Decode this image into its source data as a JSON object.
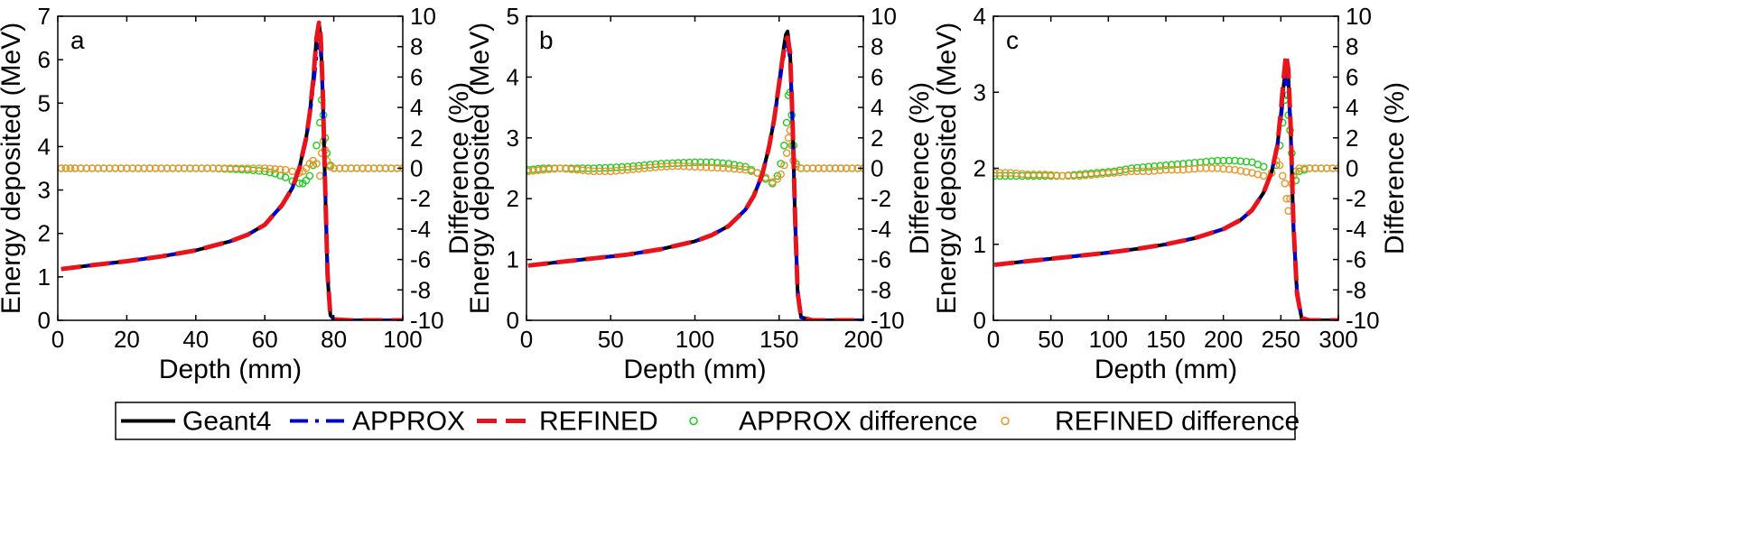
{
  "chart_data": [
    {
      "type": "line",
      "panel_label": "a",
      "xlabel": "Depth (mm)",
      "ylabel": "Energy deposited (MeV)",
      "y2label": "Difference (%)",
      "xlim": [
        0,
        100
      ],
      "ylim": [
        0,
        7
      ],
      "y2lim": [
        -10,
        10
      ],
      "xticks": [
        "0",
        "20",
        "40",
        "60",
        "80",
        "100"
      ],
      "yticks": [
        "0",
        "1",
        "2",
        "3",
        "4",
        "5",
        "6",
        "7"
      ],
      "y2ticks": [
        "-10",
        "-8",
        "-6",
        "-4",
        "-2",
        "0",
        "2",
        "4",
        "6",
        "8",
        "10"
      ],
      "series": [
        {
          "name": "Geant4",
          "color": "#000000",
          "style": "solid",
          "x": [
            1,
            10,
            20,
            30,
            40,
            50,
            55,
            60,
            65,
            68,
            70,
            72,
            73,
            74,
            75,
            75.7,
            76.2,
            76.8,
            77.5,
            78.2,
            79,
            80,
            85,
            100
          ],
          "y": [
            1.18,
            1.27,
            1.36,
            1.47,
            1.61,
            1.82,
            1.97,
            2.2,
            2.65,
            3.05,
            3.5,
            4.2,
            4.75,
            5.5,
            6.5,
            6.85,
            6.5,
            5.2,
            3.0,
            1.0,
            0.12,
            0.02,
            0.0,
            0.0
          ]
        },
        {
          "name": "APPROX",
          "color": "#0000cc",
          "style": "dashdot",
          "x": [
            1,
            10,
            20,
            30,
            40,
            50,
            55,
            60,
            65,
            68,
            70,
            72,
            73,
            74,
            75,
            75.7,
            76.2,
            76.8,
            77.5,
            78.2,
            79,
            80,
            85,
            100
          ],
          "y": [
            1.18,
            1.27,
            1.36,
            1.47,
            1.61,
            1.82,
            1.97,
            2.2,
            2.65,
            3.05,
            3.48,
            4.15,
            4.7,
            5.35,
            6.1,
            6.35,
            6.2,
            5.2,
            3.1,
            1.1,
            0.15,
            0.02,
            0.0,
            0.0
          ]
        },
        {
          "name": "REFINED",
          "color": "#e8141c",
          "style": "dashed",
          "x": [
            1,
            10,
            20,
            30,
            40,
            50,
            55,
            60,
            65,
            68,
            70,
            72,
            73,
            74,
            75,
            75.7,
            76.2,
            76.8,
            77.5,
            78.2,
            79,
            80,
            85,
            100
          ],
          "y": [
            1.18,
            1.27,
            1.36,
            1.47,
            1.61,
            1.82,
            1.97,
            2.2,
            2.65,
            3.05,
            3.5,
            4.2,
            4.75,
            5.5,
            6.5,
            6.85,
            6.55,
            5.3,
            3.05,
            1.05,
            0.12,
            0.02,
            0.0,
            0.0
          ]
        },
        {
          "name": "APPROX difference",
          "color": "#22cc22",
          "style": "marker",
          "axis": "y2",
          "x": [
            1,
            5,
            10,
            15,
            20,
            25,
            30,
            35,
            40,
            45,
            50,
            55,
            60,
            63,
            66,
            68,
            70,
            71,
            72,
            73,
            74,
            75,
            76,
            76.5,
            77,
            77.5,
            78,
            79,
            80,
            85,
            90,
            95,
            100
          ],
          "y": [
            0,
            0,
            0,
            0,
            0,
            0,
            0,
            0,
            0,
            0,
            -0.05,
            -0.1,
            -0.2,
            -0.35,
            -0.6,
            -0.85,
            -1.0,
            -1.0,
            -0.8,
            -0.5,
            0.2,
            1.5,
            3.0,
            4.5,
            3.5,
            2.0,
            1.0,
            0.2,
            0,
            0,
            0,
            0,
            0
          ]
        },
        {
          "name": "REFINED difference",
          "color": "#e8962a",
          "style": "marker",
          "axis": "y2",
          "x": [
            1,
            5,
            10,
            15,
            20,
            25,
            30,
            35,
            40,
            45,
            50,
            55,
            60,
            63,
            66,
            68,
            70,
            71,
            72,
            73,
            74,
            75,
            76,
            76.5,
            77,
            77.5,
            78,
            79,
            80,
            85,
            90,
            95,
            100
          ],
          "y": [
            0,
            0,
            0,
            0,
            0,
            0,
            0,
            0,
            0,
            0,
            0,
            0,
            0,
            -0.05,
            -0.1,
            -0.2,
            -0.3,
            -0.2,
            0,
            0.3,
            0.5,
            0.3,
            -0.5,
            1.0,
            1.8,
            1.2,
            0.5,
            0.1,
            0,
            0,
            0,
            0,
            0
          ]
        }
      ]
    },
    {
      "type": "line",
      "panel_label": "b",
      "xlabel": "Depth (mm)",
      "ylabel": "Energy deposited (MeV)",
      "y2label": "Difference (%)",
      "xlim": [
        0,
        200
      ],
      "ylim": [
        0,
        5
      ],
      "y2lim": [
        -10,
        10
      ],
      "xticks": [
        "0",
        "50",
        "100",
        "150",
        "200"
      ],
      "yticks": [
        "0",
        "1",
        "2",
        "3",
        "4",
        "5"
      ],
      "y2ticks": [
        "-10",
        "-8",
        "-6",
        "-4",
        "-2",
        "0",
        "2",
        "4",
        "6",
        "8",
        "10"
      ],
      "series": [
        {
          "name": "Geant4",
          "color": "#000000",
          "style": "solid",
          "x": [
            1,
            20,
            40,
            60,
            80,
            100,
            110,
            120,
            130,
            135,
            140,
            144,
            147,
            150,
            152,
            154,
            155,
            156.5,
            158,
            159.5,
            161,
            163,
            170,
            200
          ],
          "y": [
            0.9,
            0.96,
            1.02,
            1.08,
            1.17,
            1.3,
            1.4,
            1.55,
            1.82,
            2.05,
            2.4,
            2.85,
            3.3,
            3.9,
            4.35,
            4.7,
            4.75,
            4.4,
            3.2,
            1.6,
            0.45,
            0.05,
            0.0,
            0.0
          ]
        },
        {
          "name": "APPROX",
          "color": "#0000cc",
          "style": "dashdot",
          "x": [
            1,
            20,
            40,
            60,
            80,
            100,
            110,
            120,
            130,
            135,
            140,
            144,
            147,
            150,
            152,
            154,
            155,
            156.5,
            158,
            159.5,
            161,
            163,
            170,
            200
          ],
          "y": [
            0.9,
            0.96,
            1.02,
            1.08,
            1.17,
            1.3,
            1.4,
            1.55,
            1.82,
            2.05,
            2.4,
            2.85,
            3.3,
            3.85,
            4.25,
            4.5,
            4.55,
            4.3,
            3.2,
            1.65,
            0.5,
            0.05,
            0.0,
            0.0
          ]
        },
        {
          "name": "REFINED",
          "color": "#e8141c",
          "style": "dashed",
          "x": [
            1,
            20,
            40,
            60,
            80,
            100,
            110,
            120,
            130,
            135,
            140,
            144,
            147,
            150,
            152,
            154,
            155,
            156.5,
            158,
            159.5,
            161,
            163,
            170,
            200
          ],
          "y": [
            0.9,
            0.96,
            1.02,
            1.08,
            1.17,
            1.3,
            1.4,
            1.55,
            1.82,
            2.05,
            2.4,
            2.85,
            3.3,
            3.9,
            4.3,
            4.6,
            4.65,
            4.4,
            3.25,
            1.65,
            0.45,
            0.05,
            0.0,
            0.0
          ]
        },
        {
          "name": "APPROX difference",
          "color": "#22cc22",
          "style": "marker",
          "axis": "y2",
          "x": [
            1,
            10,
            20,
            30,
            40,
            50,
            60,
            70,
            80,
            90,
            100,
            110,
            120,
            130,
            137,
            142,
            146,
            149,
            151,
            153,
            154.5,
            155.5,
            156.5,
            157.5,
            158.5,
            160,
            163,
            170,
            180,
            190,
            200
          ],
          "y": [
            -0.1,
            0,
            0,
            0,
            0,
            0.05,
            0.1,
            0.2,
            0.3,
            0.35,
            0.4,
            0.4,
            0.3,
            0.1,
            -0.3,
            -0.7,
            -1.0,
            -0.5,
            0.3,
            1.5,
            3.0,
            4.8,
            5.0,
            3.5,
            1.5,
            0.3,
            0,
            0,
            0,
            0,
            0
          ]
        },
        {
          "name": "REFINED difference",
          "color": "#e8962a",
          "style": "marker",
          "axis": "y2",
          "x": [
            1,
            10,
            20,
            30,
            40,
            50,
            60,
            70,
            80,
            90,
            100,
            110,
            120,
            130,
            137,
            142,
            146,
            149,
            151,
            153,
            154.5,
            155.5,
            156.5,
            157.5,
            158.5,
            160,
            163,
            170,
            180,
            190,
            200
          ],
          "y": [
            -0.2,
            -0.1,
            0,
            -0.1,
            -0.2,
            -0.2,
            -0.1,
            0,
            0.1,
            0.15,
            0.1,
            0.05,
            0,
            -0.1,
            -0.3,
            -0.6,
            -0.9,
            -0.7,
            -0.4,
            0.2,
            1.0,
            2.0,
            2.5,
            1.5,
            0.5,
            0.1,
            0,
            0,
            0,
            0,
            0
          ]
        }
      ]
    },
    {
      "type": "line",
      "panel_label": "c",
      "xlabel": "Depth (mm)",
      "ylabel": "Energy deposited (MeV)",
      "y2label": "Difference (%)",
      "xlim": [
        0,
        300
      ],
      "ylim": [
        0,
        4
      ],
      "y2lim": [
        -10,
        10
      ],
      "xticks": [
        "0",
        "50",
        "100",
        "150",
        "200",
        "250",
        "300"
      ],
      "yticks": [
        "0",
        "1",
        "2",
        "3",
        "4"
      ],
      "y2ticks": [
        "-10",
        "-8",
        "-6",
        "-4",
        "-2",
        "0",
        "2",
        "4",
        "6",
        "8",
        "10"
      ],
      "series": [
        {
          "name": "Geant4",
          "color": "#000000",
          "style": "solid",
          "x": [
            1,
            25,
            50,
            75,
            100,
            125,
            150,
            175,
            200,
            215,
            225,
            235,
            242,
            247,
            250,
            252.5,
            254.5,
            256.5,
            258.5,
            261,
            264,
            268,
            275,
            300
          ],
          "y": [
            0.73,
            0.77,
            0.81,
            0.85,
            0.89,
            0.94,
            1.0,
            1.08,
            1.2,
            1.32,
            1.45,
            1.68,
            1.95,
            2.3,
            2.7,
            3.1,
            3.35,
            3.2,
            2.5,
            1.2,
            0.35,
            0.03,
            0.0,
            0.0
          ]
        },
        {
          "name": "APPROX",
          "color": "#0000cc",
          "style": "dashdot",
          "x": [
            1,
            25,
            50,
            75,
            100,
            125,
            150,
            175,
            200,
            215,
            225,
            235,
            242,
            247,
            250,
            252.5,
            254.5,
            256.5,
            258.5,
            261,
            264,
            268,
            275,
            300
          ],
          "y": [
            0.73,
            0.77,
            0.81,
            0.85,
            0.89,
            0.94,
            1.0,
            1.08,
            1.2,
            1.32,
            1.45,
            1.68,
            1.95,
            2.3,
            2.65,
            3.0,
            3.2,
            3.1,
            2.5,
            1.25,
            0.4,
            0.03,
            0.0,
            0.0
          ]
        },
        {
          "name": "REFINED",
          "color": "#e8141c",
          "style": "dashed",
          "x": [
            1,
            25,
            50,
            75,
            100,
            125,
            150,
            175,
            200,
            215,
            225,
            235,
            242,
            247,
            250,
            252.5,
            254.5,
            256.5,
            258.5,
            261,
            264,
            268,
            275,
            300
          ],
          "y": [
            0.73,
            0.77,
            0.81,
            0.85,
            0.89,
            0.94,
            1.0,
            1.08,
            1.2,
            1.32,
            1.45,
            1.68,
            1.95,
            2.3,
            2.75,
            3.2,
            3.5,
            3.3,
            2.55,
            1.25,
            0.35,
            0.03,
            0.0,
            0.0
          ]
        },
        {
          "name": "APPROX difference",
          "color": "#22cc22",
          "style": "marker",
          "axis": "y2",
          "x": [
            1,
            15,
            30,
            45,
            60,
            75,
            90,
            105,
            120,
            135,
            150,
            165,
            180,
            195,
            210,
            225,
            235,
            242,
            246,
            249,
            251.5,
            253.5,
            255,
            256.5,
            258,
            259.5,
            261,
            263,
            266,
            275,
            285,
            300
          ],
          "y": [
            -0.5,
            -0.5,
            -0.5,
            -0.5,
            -0.5,
            -0.4,
            -0.3,
            -0.2,
            0,
            0.1,
            0.2,
            0.3,
            0.4,
            0.5,
            0.5,
            0.4,
            0.1,
            -0.3,
            0.2,
            1.5,
            3.0,
            4.5,
            4.8,
            3.5,
            2.5,
            1.0,
            -0.5,
            -0.8,
            -0.2,
            0,
            0,
            0
          ]
        },
        {
          "name": "REFINED difference",
          "color": "#e8962a",
          "style": "marker",
          "axis": "y2",
          "x": [
            1,
            15,
            30,
            45,
            60,
            75,
            90,
            105,
            120,
            135,
            150,
            165,
            180,
            195,
            210,
            225,
            235,
            242,
            246,
            249,
            251.5,
            253.5,
            255,
            256.5,
            258,
            259.5,
            261,
            263,
            266,
            275,
            285,
            300
          ],
          "y": [
            -0.3,
            -0.3,
            -0.4,
            -0.4,
            -0.5,
            -0.5,
            -0.4,
            -0.3,
            -0.2,
            -0.2,
            -0.1,
            -0.1,
            0,
            0,
            -0.1,
            -0.3,
            -0.5,
            -0.3,
            0.5,
            0.2,
            -0.5,
            -1.0,
            -2.0,
            -2.8,
            -2.0,
            -1.0,
            -0.5,
            -0.2,
            0,
            0,
            0,
            0
          ]
        }
      ]
    }
  ],
  "legend": {
    "placement": "bottom-center",
    "entries": [
      {
        "label": "Geant4",
        "color": "#000000",
        "style": "solid"
      },
      {
        "label": "APPROX",
        "color": "#0000cc",
        "style": "dashdot"
      },
      {
        "label": "REFINED",
        "color": "#e8141c",
        "style": "dashed"
      },
      {
        "label": "APPROX difference",
        "color": "#22cc22",
        "style": "marker"
      },
      {
        "label": "REFINED difference",
        "color": "#e8962a",
        "style": "marker"
      }
    ]
  }
}
